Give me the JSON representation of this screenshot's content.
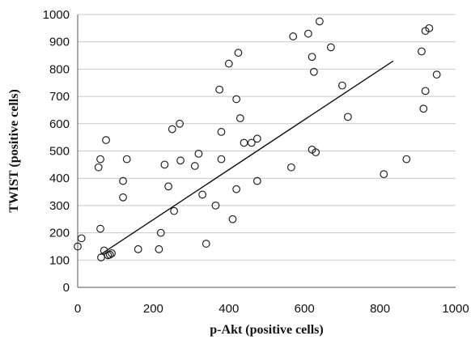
{
  "chart_data": {
    "type": "scatter",
    "title": "",
    "xlabel": "p-Akt (positive cells)",
    "ylabel": "TWIST (positive cells)",
    "xlim": [
      0,
      1000
    ],
    "ylim": [
      0,
      1000
    ],
    "x_ticks": [
      "0",
      "200",
      "400",
      "600",
      "800",
      "1000"
    ],
    "y_ticks": [
      "0",
      "100",
      "200",
      "300",
      "400",
      "500",
      "600",
      "700",
      "800",
      "900",
      "1000"
    ],
    "grid": "horizontal",
    "legend": "none",
    "series": [
      {
        "points": [
          [
            0,
            150
          ],
          [
            10,
            180
          ],
          [
            55,
            440
          ],
          [
            60,
            470
          ],
          [
            60,
            215
          ],
          [
            62,
            110
          ],
          [
            70,
            135
          ],
          [
            75,
            540
          ],
          [
            80,
            118
          ],
          [
            85,
            120
          ],
          [
            90,
            125
          ],
          [
            120,
            330
          ],
          [
            120,
            390
          ],
          [
            130,
            470
          ],
          [
            160,
            140
          ],
          [
            215,
            140
          ],
          [
            220,
            200
          ],
          [
            230,
            450
          ],
          [
            240,
            370
          ],
          [
            250,
            580
          ],
          [
            255,
            280
          ],
          [
            270,
            600
          ],
          [
            272,
            465
          ],
          [
            310,
            445
          ],
          [
            320,
            490
          ],
          [
            330,
            340
          ],
          [
            340,
            160
          ],
          [
            365,
            300
          ],
          [
            375,
            725
          ],
          [
            380,
            570
          ],
          [
            380,
            470
          ],
          [
            400,
            820
          ],
          [
            410,
            250
          ],
          [
            420,
            690
          ],
          [
            420,
            360
          ],
          [
            425,
            860
          ],
          [
            430,
            620
          ],
          [
            440,
            530
          ],
          [
            460,
            530
          ],
          [
            475,
            545
          ],
          [
            475,
            390
          ],
          [
            565,
            440
          ],
          [
            570,
            920
          ],
          [
            610,
            930
          ],
          [
            620,
            505
          ],
          [
            620,
            845
          ],
          [
            625,
            790
          ],
          [
            630,
            495
          ],
          [
            640,
            975
          ],
          [
            670,
            880
          ],
          [
            700,
            740
          ],
          [
            715,
            625
          ],
          [
            810,
            415
          ],
          [
            870,
            470
          ],
          [
            910,
            865
          ],
          [
            915,
            655
          ],
          [
            920,
            940
          ],
          [
            920,
            720
          ],
          [
            930,
            950
          ],
          [
            950,
            780
          ]
        ]
      }
    ],
    "trendline": {
      "x": [
        60,
        835
      ],
      "y": [
        120,
        830
      ]
    },
    "colors": {
      "points": "#222222",
      "trend": "#111111",
      "grid": "#c8c8c8"
    }
  }
}
